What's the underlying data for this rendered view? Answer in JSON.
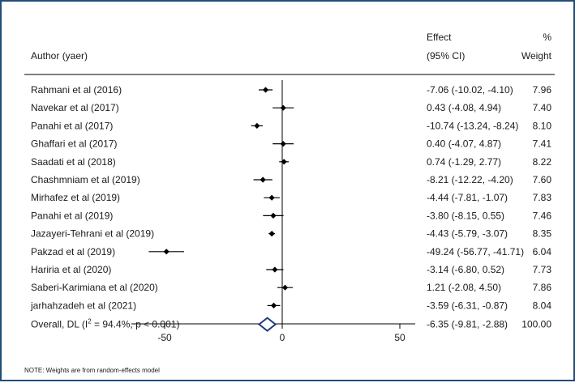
{
  "chart_data": {
    "type": "forest",
    "headers": {
      "effect": "Effect",
      "pct": "%",
      "author": "Author (yaer)",
      "ci": "(95% CI)",
      "weight": "Weight"
    },
    "studies": [
      {
        "label": "Rahmani  et al (2016)",
        "effect": -7.06,
        "lower": -10.02,
        "upper": -4.1,
        "ci_text": "-7.06 (-10.02, -4.10)",
        "weight": "7.96"
      },
      {
        "label": "Navekar et al (2017)",
        "effect": 0.43,
        "lower": -4.08,
        "upper": 4.94,
        "ci_text": "0.43 (-4.08, 4.94)",
        "weight": "7.40"
      },
      {
        "label": "Panahi et al (2017)",
        "effect": -10.74,
        "lower": -13.24,
        "upper": -8.24,
        "ci_text": "-10.74 (-13.24, -8.24)",
        "weight": "8.10"
      },
      {
        "label": "Ghaffari et al (2017)",
        "effect": 0.4,
        "lower": -4.07,
        "upper": 4.87,
        "ci_text": "0.40 (-4.07, 4.87)",
        "weight": "7.41"
      },
      {
        "label": "Saadati  et al (2018)",
        "effect": 0.74,
        "lower": -1.29,
        "upper": 2.77,
        "ci_text": "0.74 (-1.29, 2.77)",
        "weight": "8.22"
      },
      {
        "label": "Chashmniam et al (2019)",
        "effect": -8.21,
        "lower": -12.22,
        "upper": -4.2,
        "ci_text": "-8.21 (-12.22, -4.20)",
        "weight": "7.60"
      },
      {
        "label": "Mirhafez et al (2019)",
        "effect": -4.44,
        "lower": -7.81,
        "upper": -1.07,
        "ci_text": "-4.44 (-7.81, -1.07)",
        "weight": "7.83"
      },
      {
        "label": "Panahi et al (2019)",
        "effect": -3.8,
        "lower": -8.15,
        "upper": 0.55,
        "ci_text": "-3.80 (-8.15, 0.55)",
        "weight": "7.46"
      },
      {
        "label": "Jazayeri-Tehrani  et al (2019)",
        "effect": -4.43,
        "lower": -5.79,
        "upper": -3.07,
        "ci_text": "-4.43 (-5.79, -3.07)",
        "weight": "8.35"
      },
      {
        "label": "Pakzad  et al (2019)",
        "effect": -49.24,
        "lower": -56.77,
        "upper": -41.71,
        "ci_text": "-49.24 (-56.77, -41.71)",
        "weight": "6.04"
      },
      {
        "label": "Hariria et al (2020)",
        "effect": -3.14,
        "lower": -6.8,
        "upper": 0.52,
        "ci_text": "-3.14 (-6.80, 0.52)",
        "weight": "7.73"
      },
      {
        "label": "Saberi-Karimiana et al (2020)",
        "effect": 1.21,
        "lower": -2.08,
        "upper": 4.5,
        "ci_text": "1.21 (-2.08, 4.50)",
        "weight": "7.86"
      },
      {
        "label": "jarhahzadeh et al (2021)",
        "effect": -3.59,
        "lower": -6.31,
        "upper": -0.87,
        "ci_text": "-3.59 (-6.31, -0.87)",
        "weight": "8.04"
      }
    ],
    "overall": {
      "label_pre": "Overall, DL (I",
      "label_sup": "2",
      "label_post": " = 94.4%, p < 0.001)",
      "effect": -6.35,
      "lower": -9.81,
      "upper": -2.88,
      "ci_text": "-6.35 (-9.81, -2.88)",
      "weight": "100.00"
    },
    "x_ticks": [
      "-50",
      "0",
      "50"
    ],
    "x_tick_values": [
      -50,
      0,
      50
    ],
    "null_value": 0,
    "footnote": "NOTE: Weights are from random-effects model"
  }
}
